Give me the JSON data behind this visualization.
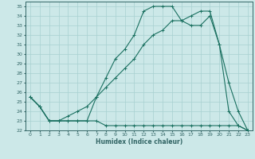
{
  "xlabel": "Humidex (Indice chaleur)",
  "bg_color": "#cce8e8",
  "grid_color": "#a8d0d0",
  "line_color": "#1a7060",
  "spine_color": "#336666",
  "xlim": [
    -0.5,
    23.5
  ],
  "ylim": [
    22,
    35.5
  ],
  "xticks": [
    0,
    1,
    2,
    3,
    4,
    5,
    6,
    7,
    8,
    9,
    10,
    11,
    12,
    13,
    14,
    15,
    16,
    17,
    18,
    19,
    20,
    21,
    22,
    23
  ],
  "yticks": [
    22,
    23,
    24,
    25,
    26,
    27,
    28,
    29,
    30,
    31,
    32,
    33,
    34,
    35
  ],
  "line1_x": [
    0,
    1,
    2,
    3,
    4,
    5,
    6,
    7,
    8,
    9,
    10,
    11,
    12,
    13,
    14,
    15,
    16,
    17,
    18,
    19,
    20,
    21,
    22,
    23
  ],
  "line1_y": [
    25.5,
    24.5,
    23.0,
    23.0,
    23.0,
    23.0,
    23.0,
    25.5,
    27.5,
    29.5,
    30.5,
    32.0,
    34.5,
    35.0,
    35.0,
    35.0,
    33.5,
    33.0,
    33.0,
    34.0,
    31.0,
    24.0,
    22.5,
    22.0
  ],
  "line2_x": [
    0,
    1,
    2,
    3,
    4,
    5,
    6,
    7,
    8,
    9,
    10,
    11,
    12,
    13,
    14,
    15,
    16,
    17,
    18,
    19,
    20,
    21,
    22,
    23
  ],
  "line2_y": [
    25.5,
    24.5,
    23.0,
    23.0,
    23.5,
    24.0,
    24.5,
    25.5,
    26.5,
    27.5,
    28.5,
    29.5,
    31.0,
    32.0,
    32.5,
    33.5,
    33.5,
    34.0,
    34.5,
    34.5,
    31.0,
    27.0,
    24.0,
    22.0
  ],
  "line3_x": [
    0,
    1,
    2,
    3,
    4,
    5,
    6,
    7,
    8,
    9,
    10,
    11,
    12,
    13,
    14,
    15,
    16,
    17,
    18,
    19,
    20,
    21,
    22,
    23
  ],
  "line3_y": [
    25.5,
    24.5,
    23.0,
    23.0,
    23.0,
    23.0,
    23.0,
    23.0,
    22.5,
    22.5,
    22.5,
    22.5,
    22.5,
    22.5,
    22.5,
    22.5,
    22.5,
    22.5,
    22.5,
    22.5,
    22.5,
    22.5,
    22.5,
    22.0
  ]
}
